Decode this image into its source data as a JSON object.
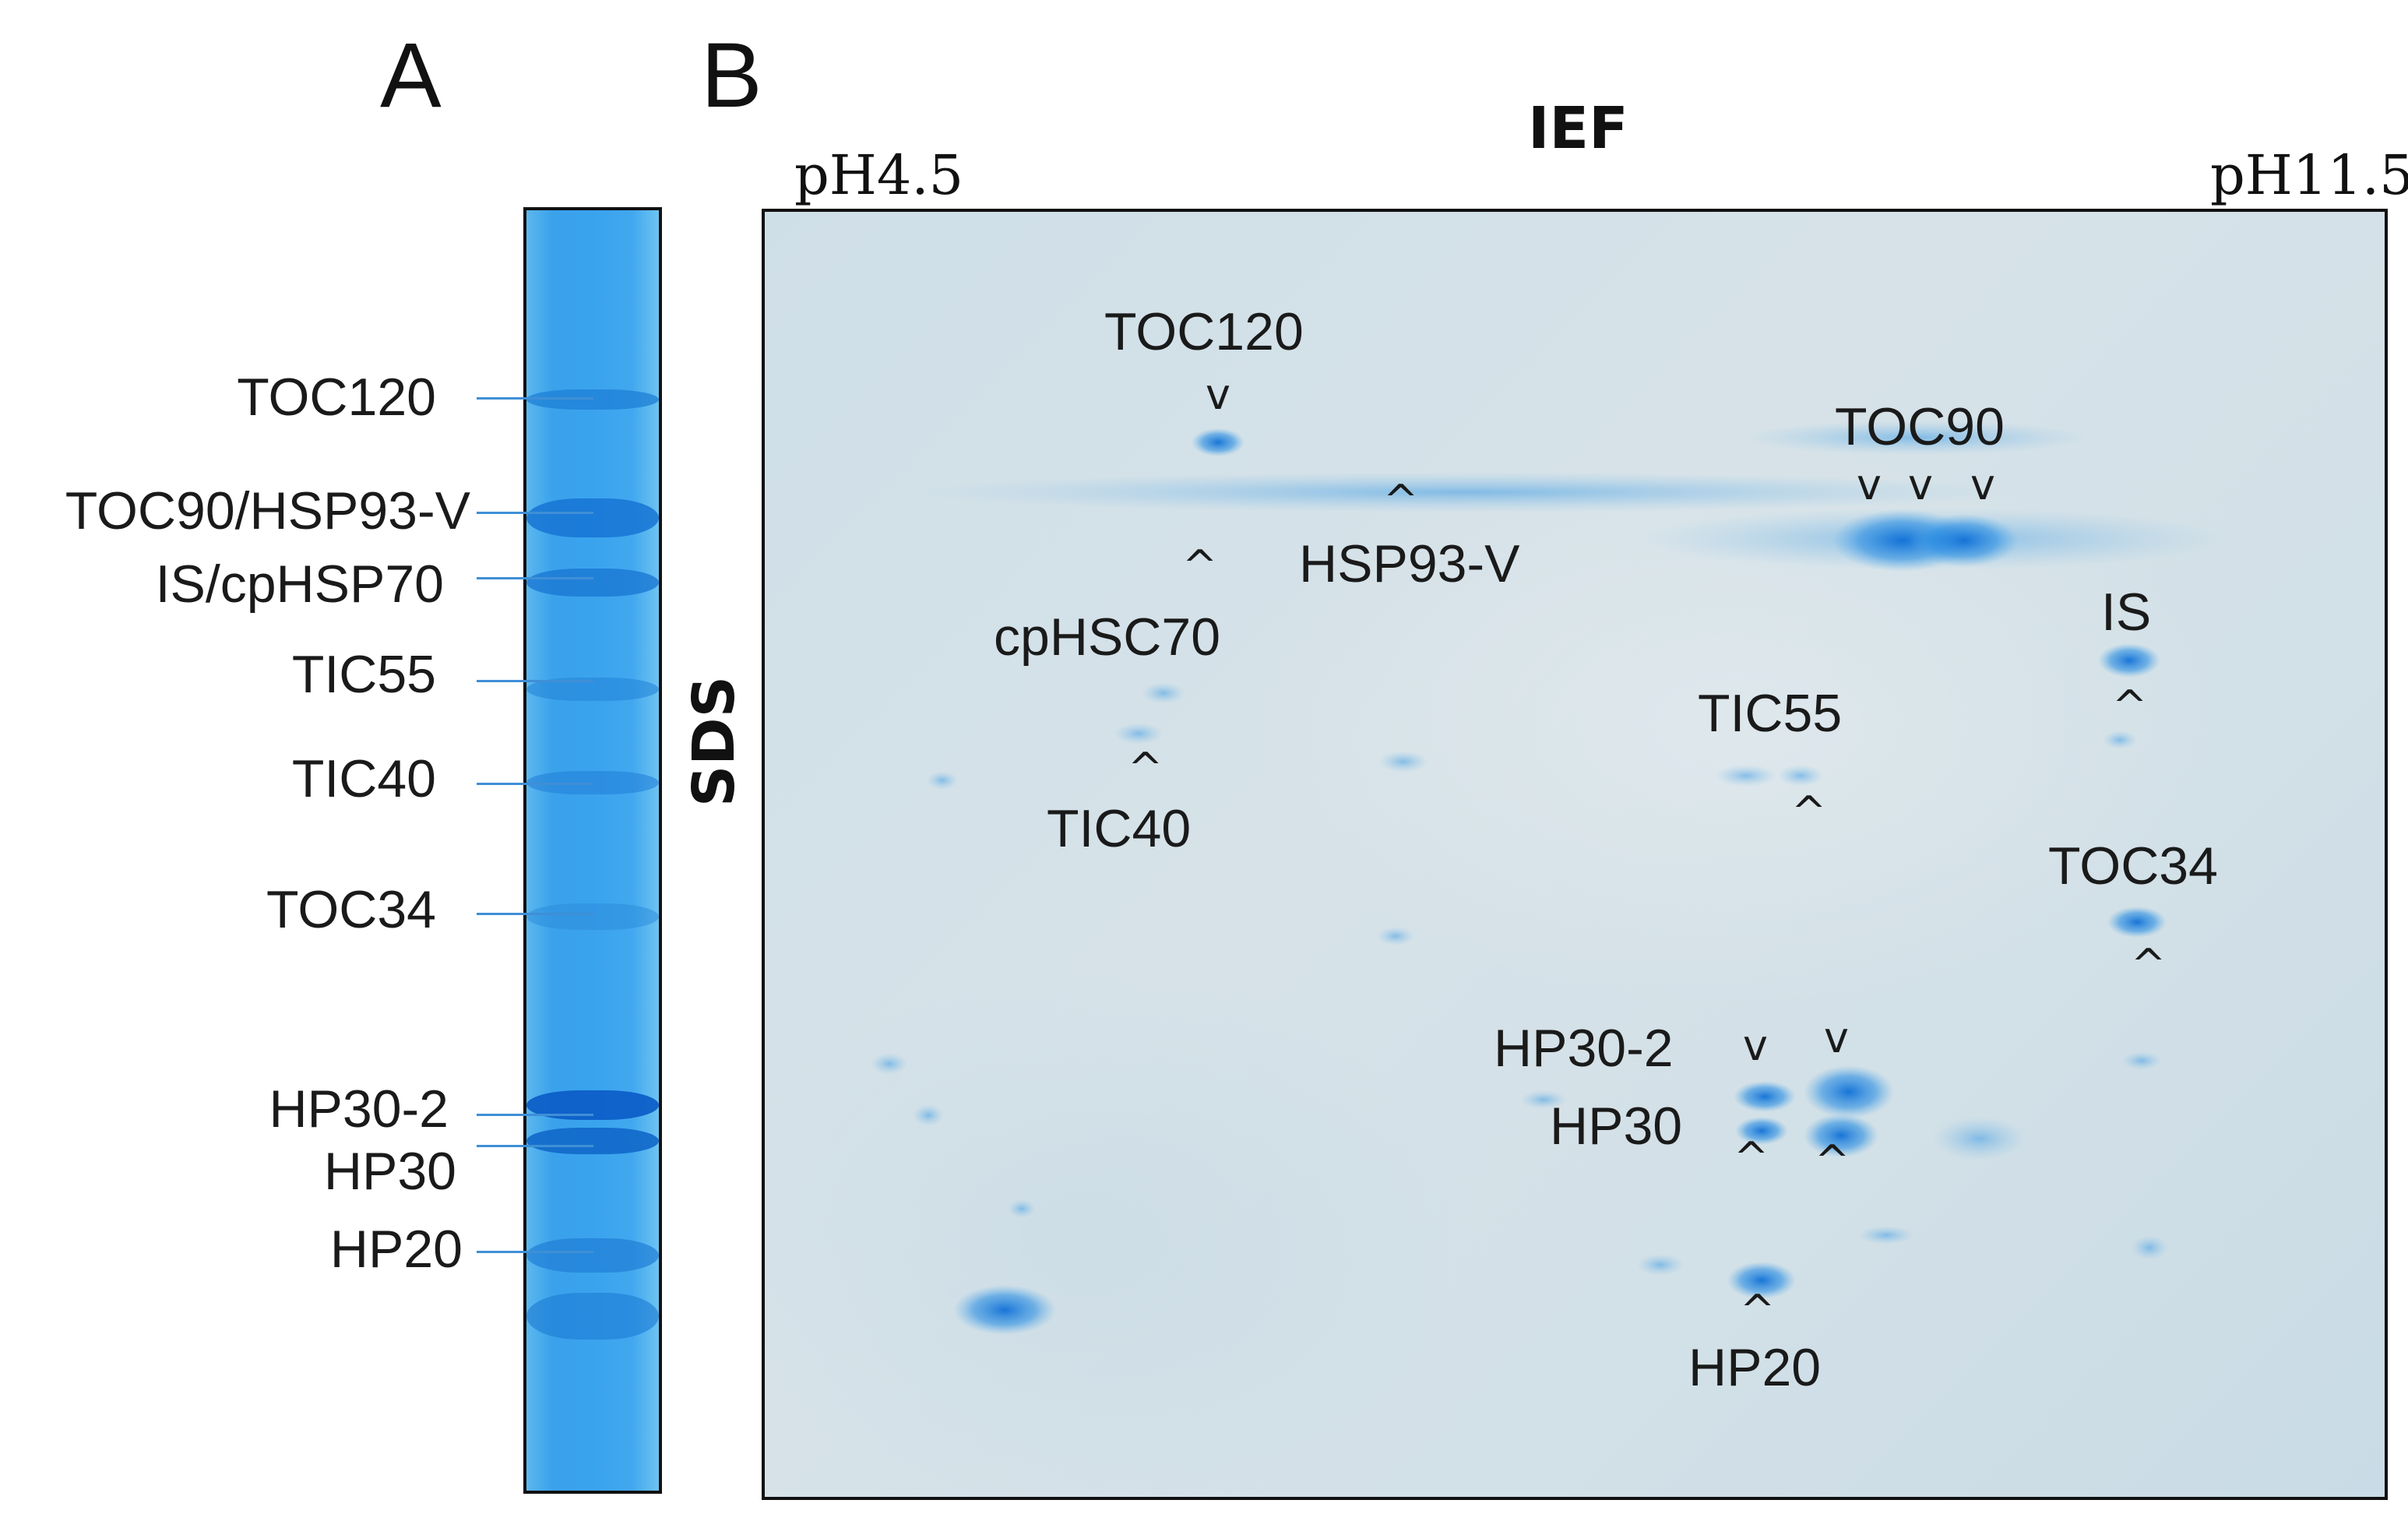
{
  "panel_a": {
    "letter": "A",
    "lane_labels": [
      "TOC120",
      "TOC90/HSP93-V",
      "IS/cpHSP70",
      "TIC55",
      "TIC40",
      "TOC34",
      "HP30-2",
      "HP30",
      "HP20"
    ]
  },
  "panel_b": {
    "letter": "B",
    "axis_top": "IEF",
    "axis_left": "SDS",
    "ph_left": "pH4.5",
    "ph_right": "pH11.5",
    "spot_labels": {
      "toc120": "TOC120",
      "hsp93v": "HSP93-V",
      "cphsc70": "cpHSC70",
      "tic40": "TIC40",
      "toc90": "TOC90",
      "is": "IS",
      "tic55": "TIC55",
      "toc34": "TOC34",
      "hp30_2": "HP30-2",
      "hp30": "HP30",
      "hp20": "HP20"
    },
    "arrow_down": "v",
    "arrow_up": "^"
  },
  "colors": {
    "stain_blue": "#2f97e6",
    "gel_background": "#d2e0e7",
    "leader_line": "#3f8fd6"
  }
}
